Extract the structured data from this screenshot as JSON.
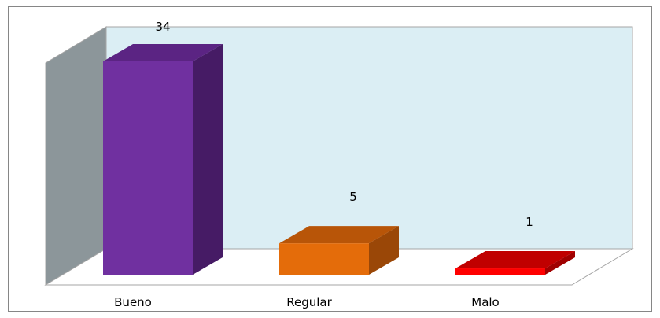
{
  "chart_data": {
    "type": "bar",
    "style": "3d-column",
    "categories": [
      "Bueno",
      "Regular",
      "Malo"
    ],
    "values": [
      34,
      5,
      1
    ],
    "data_labels": [
      "34",
      "5",
      "1"
    ],
    "ylim": [
      0,
      34
    ],
    "title": "",
    "xlabel": "",
    "ylabel": "",
    "legend": "none",
    "grid": false,
    "colors": {
      "bars": [
        {
          "front": "#7030a0",
          "top": "#5b2483",
          "side": "#461b65"
        },
        {
          "front": "#e46c0a",
          "top": "#b85508",
          "side": "#9a4707"
        },
        {
          "front": "#ff0000",
          "top": "#c00000",
          "side": "#a00000"
        }
      ],
      "back_wall": "#dbeef4",
      "side_wall": "#8c969a",
      "floor": "#ffffff",
      "outline": "#a6a6a6"
    }
  }
}
